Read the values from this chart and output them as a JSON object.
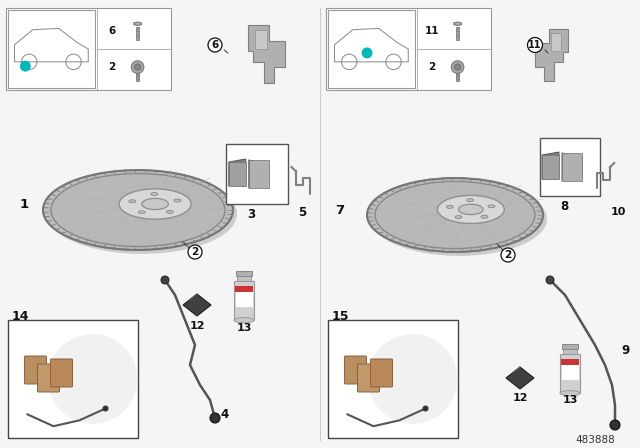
{
  "bg_color": "#f5f5f5",
  "text_color": "#111111",
  "teal_color": "#00b8b8",
  "disk_outer": "#c0c0c0",
  "disk_mid": "#b0b0b0",
  "disk_hub": "#d0d0d0",
  "disk_center": "#e0e0e0",
  "disk_edge_color": "#808080",
  "part_gray": "#a0a0a0",
  "part_mid": "#888888",
  "part_dark": "#606060",
  "diagram_number": "483888",
  "divider_color": "#cccccc",
  "left_labels": {
    "disk": "1",
    "bolt": "2",
    "pad": "3",
    "sensor": "4",
    "clip": "5",
    "bracket": "6",
    "grease": "12",
    "spray": "13",
    "kit": "14"
  },
  "right_labels": {
    "disk": "7",
    "bolt": "2",
    "pad": "8",
    "sensor": "9",
    "clip": "10",
    "bracket": "11",
    "grease": "12",
    "spray": "13",
    "kit": "15"
  }
}
